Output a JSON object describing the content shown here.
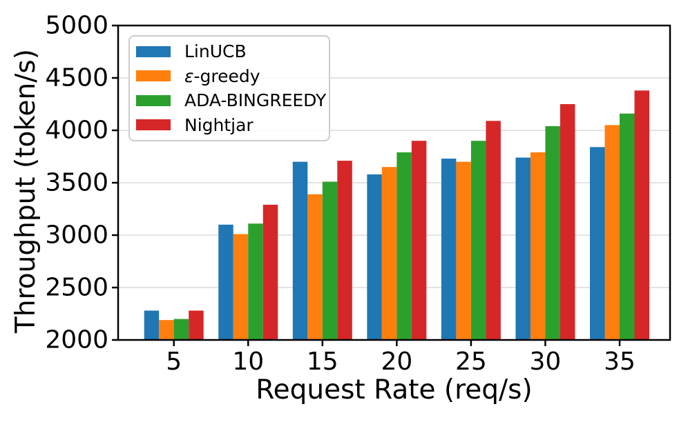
{
  "chart_data": {
    "type": "bar",
    "title": "",
    "xlabel": "Request Rate (req/s)",
    "ylabel": "Throughput (token/s)",
    "categories": [
      "5",
      "10",
      "15",
      "20",
      "25",
      "30",
      "35"
    ],
    "series": [
      {
        "name": "LinUCB",
        "color": "#1f77b4",
        "values": [
          2280,
          3100,
          3700,
          3580,
          3730,
          3740,
          3840
        ]
      },
      {
        "name": "ε-greedy",
        "color": "#ff7f0e",
        "values": [
          2190,
          3010,
          3390,
          3650,
          3700,
          3790,
          4050
        ]
      },
      {
        "name": "ADA-BINGREEDY",
        "color": "#2ca02c",
        "values": [
          2200,
          3110,
          3510,
          3790,
          3900,
          4040,
          4160
        ]
      },
      {
        "name": "Nightjar",
        "color": "#d62728",
        "values": [
          2280,
          3290,
          3710,
          3900,
          4090,
          4250,
          4380
        ]
      }
    ],
    "ylim": [
      2000,
      5000
    ],
    "yticks": [
      2000,
      2500,
      3000,
      3500,
      4000,
      4500,
      5000
    ],
    "grid": true,
    "grid_color": "#e3e3e3",
    "axis_color": "#000000",
    "legend_position": "upper-left"
  }
}
